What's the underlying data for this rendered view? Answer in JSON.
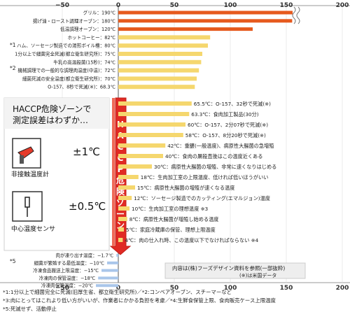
{
  "chart_data": {
    "type": "bar",
    "orientation": "horizontal",
    "x_ticks": [
      "−50",
      "0",
      "50",
      "100",
      "150",
      "200"
    ],
    "xlim": [
      -50,
      200
    ],
    "axis_break_after": 120,
    "series": [
      {
        "label": "グリル：190℃",
        "value": 190,
        "color": "#e65a1e",
        "label_side": "left"
      },
      {
        "label": "揚げ油・ロースト調理オーブン：180℃",
        "value": 180,
        "color": "#e65a1e",
        "label_side": "left"
      },
      {
        "label": "低温調理オーブン：120℃",
        "value": 120,
        "color": "#e65a1e",
        "label_side": "left"
      },
      {
        "label": "ホットコーヒー：82℃",
        "value": 82,
        "color": "#f5d76e",
        "label_side": "left"
      },
      {
        "label": "ハム、ソーセージ製造での湯煎ボイル槽：80℃",
        "value": 80,
        "color": "#f5d76e",
        "label_side": "left"
      },
      {
        "label": "1分以上で細菌完全死滅(都立衛生研究所)：75℃",
        "value": 75,
        "color": "#f5d76e",
        "label_side": "left"
      },
      {
        "label": "牛乳の高温殺菌(15秒)：74℃",
        "value": 74,
        "color": "#f5d76e",
        "label_side": "left"
      },
      {
        "label": "機械調理での一般的な調理肉温度(中温)：72℃",
        "value": 72,
        "color": "#f5d76e",
        "label_side": "left"
      },
      {
        "label": "細菌死滅の安全温度(都立衛生研究所)：70℃",
        "value": 70,
        "color": "#f5d76e",
        "label_side": "left"
      },
      {
        "label": "O-157、8秒で死滅(※)：68.3℃",
        "value": 68.3,
        "color": "#f5d76e",
        "label_side": "left"
      },
      {
        "label": "65.5℃：O-157、32秒で死滅(※)",
        "value": 65.5,
        "color": "#f5d76e",
        "label_side": "right"
      },
      {
        "label": "63.3℃：食肉加工製品(30分)",
        "value": 63.3,
        "color": "#f5d76e",
        "label_side": "right"
      },
      {
        "label": "60℃：O-157、2分07秒で死滅(※)",
        "value": 60,
        "color": "#f5d76e",
        "label_side": "right"
      },
      {
        "label": "58℃：O-157、8分20秒で死滅(※)",
        "value": 58,
        "color": "#f5d76e",
        "label_side": "right"
      },
      {
        "label": "42℃：重膿(一般温度)、病原性大腸菌の急増殖",
        "value": 42,
        "color": "#f5d76e",
        "label_side": "right"
      },
      {
        "label": "40℃：食肉の屠殺直後はこの温度近くある",
        "value": 40,
        "color": "#f5d76e",
        "label_side": "right"
      },
      {
        "label": "30℃：病原性大腸菌の増殖、非常に速くなりはじめる",
        "value": 30,
        "color": "#f5d76e",
        "label_side": "right"
      },
      {
        "label": "18℃：生肉加工室の上限温度、低ければ低いほうがいい",
        "value": 18,
        "color": "#f5d76e",
        "label_side": "right"
      },
      {
        "label": "15℃：病原性大腸菌の増殖が速くなる温度",
        "value": 15,
        "color": "#f5d76e",
        "label_side": "right"
      },
      {
        "label": "12℃：ソーセージ製造でのカッティング(エマルジョン)温度",
        "value": 12,
        "color": "#f5d76e",
        "label_side": "right"
      },
      {
        "label": "10℃：生肉加工室の理想温度 ※3",
        "value": 10,
        "color": "#f5d76e",
        "label_side": "right"
      },
      {
        "label": "8℃：病原性大腸菌が増殖し始める温度",
        "value": 8,
        "color": "#f5d76e",
        "label_side": "right"
      },
      {
        "label": "5℃：家庭冷蔵庫の保管、理想上限温度",
        "value": 5,
        "color": "#f5d76e",
        "label_side": "right"
      },
      {
        "label": "4℃：肉の仕入れ時、この温度以下でなければならない ※4",
        "value": 4,
        "color": "#f5d76e",
        "label_side": "right"
      },
      {
        "label": "肉が凍り出す温度：−1.7℃",
        "value": -1.7,
        "color": "#a9c6ea",
        "label_side": "left"
      },
      {
        "label": "細菌が繁殖する最低温度：−10℃",
        "value": -10,
        "color": "#a9c6ea",
        "label_side": "left"
      },
      {
        "label": "冷凍食品搬送上限温度：−15℃",
        "value": -15,
        "color": "#a9c6ea",
        "label_side": "left"
      },
      {
        "label": "冷凍肉の保管温度：−18℃",
        "value": -18,
        "color": "#a9c6ea",
        "label_side": "left"
      },
      {
        "label": "冷凍肉保管温度：−20℃",
        "value": -20,
        "color": "#a9c6ea",
        "label_side": "left"
      }
    ]
  },
  "annotations": {
    "left_note_stars": {
      "n1": "*1",
      "n2": "*2",
      "n5": "*5"
    },
    "haccp_question": "HACCP危険ゾーンで\n測定誤差はわずか…",
    "haccp_zone_label": "HACCP危険ゾーン",
    "thermometer_noncontact": {
      "accuracy": "±1℃",
      "name": "非接触温度計"
    },
    "thermometer_core": {
      "accuracy": "±0.5℃",
      "name": "中心温度センサ"
    },
    "source_box": {
      "line1": "内容は(株)フーズデザイン資料を参照(一部抜粋)",
      "line2": "(※)は米国データ"
    },
    "footnotes": [
      "*1:1分以上で細菌完全に死滅(旧厚生省、都立衛生研究所)／*2:コンベアオーブン、スチーマーなど",
      "*3:肉にとってはこれより低い方がいいが、作業者にかかる負担を考慮／*4:生鮮食保管上限、食肉販売ケース上限温度",
      "*5:死滅せず、活動停止"
    ]
  }
}
